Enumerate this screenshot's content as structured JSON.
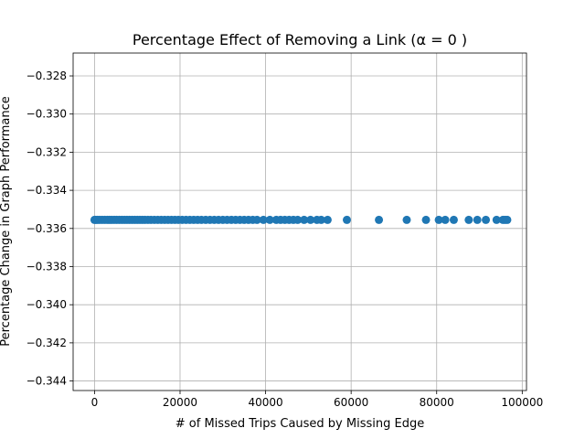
{
  "chart_data": {
    "type": "scatter",
    "title": "Percentage Effect of Removing a Link (α = 0 )",
    "xlabel": "# of Missed Trips Caused by Missing Edge",
    "ylabel": "Percentage Change in Graph Performance",
    "xlim": [
      -5000,
      101000
    ],
    "ylim": [
      -0.3445,
      -0.3268
    ],
    "xticks": [
      0,
      20000,
      40000,
      60000,
      80000,
      100000
    ],
    "xtick_labels": [
      "0",
      "20000",
      "40000",
      "60000",
      "80000",
      "100000"
    ],
    "yticks": [
      -0.344,
      -0.342,
      -0.34,
      -0.338,
      -0.336,
      -0.334,
      -0.332,
      -0.33,
      -0.328
    ],
    "ytick_labels": [
      "−0.344",
      "−0.342",
      "−0.340",
      "−0.338",
      "−0.336",
      "−0.334",
      "−0.332",
      "−0.330",
      "−0.328"
    ],
    "grid": true,
    "marker_color": "#1f77b4",
    "series": [
      {
        "x": [
          0,
          300,
          700,
          1200,
          1800,
          2400,
          3000,
          3500,
          4000,
          4600,
          5200,
          5800,
          6400,
          7000,
          7600,
          8200,
          8800,
          9400,
          10000,
          10600,
          11200,
          11800,
          12500,
          13200,
          14000,
          14800,
          15600,
          16400,
          17200,
          18000,
          18800,
          19600,
          20500,
          21400,
          22300,
          23200,
          24100,
          25000,
          26000,
          27000,
          28000,
          29000,
          30000,
          31000,
          32000,
          33000,
          34000,
          35000,
          36000,
          37000,
          38000,
          39500,
          41000,
          42500,
          43500,
          44500,
          45500,
          46500,
          47500,
          49000,
          50500,
          52000,
          53000,
          54500,
          59000,
          66500,
          73000,
          77500,
          80500,
          82000,
          84000,
          87500,
          89500,
          91500,
          94000,
          95500,
          96000,
          96500
        ],
        "y": [
          -0.33555,
          -0.33555,
          -0.33555,
          -0.33555,
          -0.33555,
          -0.33555,
          -0.33555,
          -0.33555,
          -0.33555,
          -0.33555,
          -0.33555,
          -0.33555,
          -0.33555,
          -0.33555,
          -0.33555,
          -0.33555,
          -0.33555,
          -0.33555,
          -0.33555,
          -0.33555,
          -0.33555,
          -0.33555,
          -0.33555,
          -0.33555,
          -0.33555,
          -0.33555,
          -0.33555,
          -0.33555,
          -0.33555,
          -0.33555,
          -0.33555,
          -0.33555,
          -0.33555,
          -0.33555,
          -0.33555,
          -0.33555,
          -0.33555,
          -0.33555,
          -0.33555,
          -0.33555,
          -0.33555,
          -0.33555,
          -0.33555,
          -0.33555,
          -0.33555,
          -0.33555,
          -0.33555,
          -0.33555,
          -0.33555,
          -0.33555,
          -0.33555,
          -0.33555,
          -0.33555,
          -0.33555,
          -0.33555,
          -0.33555,
          -0.33555,
          -0.33555,
          -0.33555,
          -0.33555,
          -0.33555,
          -0.33555,
          -0.33555,
          -0.33555,
          -0.33555,
          -0.33555,
          -0.33555,
          -0.33555,
          -0.33555,
          -0.33555,
          -0.33555,
          -0.33555,
          -0.33555,
          -0.33555,
          -0.33555,
          -0.33555,
          -0.33555,
          -0.33555
        ]
      }
    ]
  }
}
